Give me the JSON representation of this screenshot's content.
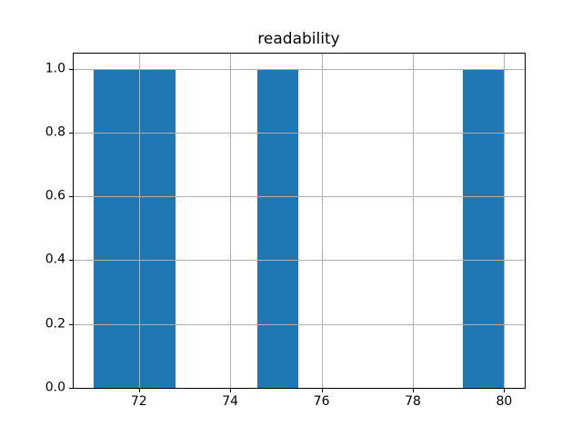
{
  "chart_data": {
    "type": "histogram",
    "title": "readability",
    "xlabel": "",
    "ylabel": "",
    "bar_color": "#1f77b4",
    "grid_color": "#b0b0b0",
    "axis_color": "#000000",
    "grid": true,
    "legend": false,
    "xlim": [
      70.55,
      80.45
    ],
    "ylim": [
      0,
      1.05
    ],
    "xticks": [
      72,
      74,
      76,
      78,
      80
    ],
    "xtick_labels": [
      "72",
      "74",
      "76",
      "78",
      "80"
    ],
    "yticks": [
      0.0,
      0.2,
      0.4,
      0.6,
      0.8,
      1.0
    ],
    "ytick_labels": [
      "0.0",
      "0.2",
      "0.4",
      "0.6",
      "0.8",
      "1.0"
    ],
    "bin_width": 0.9,
    "bins": [
      {
        "x0": 71.0,
        "x1": 71.9,
        "count": 1
      },
      {
        "x0": 71.9,
        "x1": 72.8,
        "count": 1
      },
      {
        "x0": 74.6,
        "x1": 75.5,
        "count": 1
      },
      {
        "x0": 79.1,
        "x1": 80.0,
        "count": 1
      }
    ]
  }
}
